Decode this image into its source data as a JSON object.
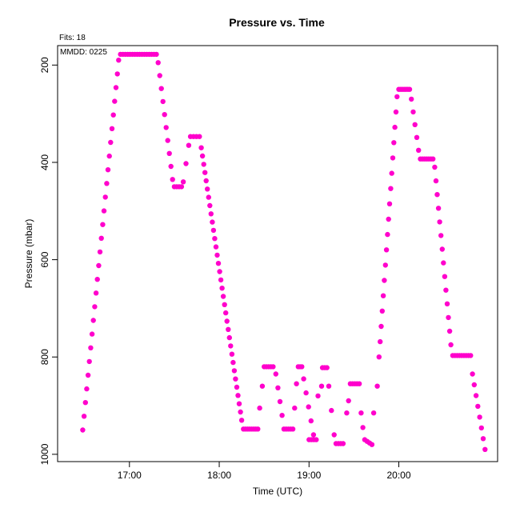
{
  "chart_data": {
    "type": "scatter",
    "title": "Pressure  vs. Time",
    "annotations": {
      "fits": "Fits: 18",
      "mmdd": "MMDD: 0225"
    },
    "xlabel": "Time (UTC)",
    "ylabel": "Pressure (mbar)",
    "xlim": [
      16.2,
      21.1
    ],
    "ylim": [
      1015,
      160
    ],
    "y_inverted": true,
    "x_ticks": [
      {
        "value": 17,
        "label": "17:00"
      },
      {
        "value": 18,
        "label": "18:00"
      },
      {
        "value": 19,
        "label": "19:00"
      },
      {
        "value": 20,
        "label": "20:00"
      }
    ],
    "y_ticks": [
      {
        "value": 200,
        "label": "200"
      },
      {
        "value": 400,
        "label": "400"
      },
      {
        "value": 600,
        "label": "600"
      },
      {
        "value": 800,
        "label": "800"
      },
      {
        "value": 1000,
        "label": "1000"
      }
    ],
    "grid": false,
    "marker_color": "#ff00cc",
    "segments": [
      {
        "x_start": 16.48,
        "x_end": 16.88,
        "y_start": 950,
        "y_end": 190,
        "n": 28
      },
      {
        "x_start": 16.9,
        "x_end": 17.3,
        "y_start": 178,
        "y_end": 178,
        "n": 16
      },
      {
        "x_start": 17.32,
        "x_end": 17.48,
        "y_start": 195,
        "y_end": 435,
        "n": 10
      },
      {
        "x_start": 17.5,
        "x_end": 17.58,
        "y_start": 450,
        "y_end": 450,
        "n": 4
      },
      {
        "x_start": 17.6,
        "x_end": 17.66,
        "y_start": 440,
        "y_end": 365,
        "n": 3
      },
      {
        "x_start": 17.68,
        "x_end": 17.78,
        "y_start": 347,
        "y_end": 347,
        "n": 4
      },
      {
        "x_start": 17.8,
        "x_end": 18.25,
        "y_start": 370,
        "y_end": 930,
        "n": 34
      },
      {
        "x_start": 18.27,
        "x_end": 18.43,
        "y_start": 948,
        "y_end": 948,
        "n": 8
      },
      {
        "x_start": 18.45,
        "x_end": 18.48,
        "y_start": 905,
        "y_end": 860,
        "n": 2
      },
      {
        "x_start": 18.5,
        "x_end": 18.6,
        "y_start": 820,
        "y_end": 820,
        "n": 5
      },
      {
        "x_start": 18.63,
        "x_end": 18.7,
        "y_start": 835,
        "y_end": 920,
        "n": 4
      },
      {
        "x_start": 18.72,
        "x_end": 18.82,
        "y_start": 948,
        "y_end": 948,
        "n": 5
      },
      {
        "x_start": 18.84,
        "x_end": 18.86,
        "y_start": 905,
        "y_end": 855,
        "n": 2
      },
      {
        "x_start": 18.88,
        "x_end": 18.92,
        "y_start": 820,
        "y_end": 820,
        "n": 3
      },
      {
        "x_start": 18.94,
        "x_end": 19.05,
        "y_start": 845,
        "y_end": 960,
        "n": 5
      },
      {
        "x_start": 19.0,
        "x_end": 19.08,
        "y_start": 970,
        "y_end": 970,
        "n": 4
      },
      {
        "x_start": 19.1,
        "x_end": 19.14,
        "y_start": 880,
        "y_end": 860,
        "n": 2
      },
      {
        "x_start": 19.15,
        "x_end": 19.2,
        "y_start": 822,
        "y_end": 822,
        "n": 3
      },
      {
        "x_start": 19.22,
        "x_end": 19.28,
        "y_start": 860,
        "y_end": 960,
        "n": 3
      },
      {
        "x_start": 19.3,
        "x_end": 19.38,
        "y_start": 978,
        "y_end": 978,
        "n": 4
      },
      {
        "x_start": 19.42,
        "x_end": 19.44,
        "y_start": 915,
        "y_end": 890,
        "n": 2
      },
      {
        "x_start": 19.46,
        "x_end": 19.56,
        "y_start": 855,
        "y_end": 855,
        "n": 5
      },
      {
        "x_start": 19.58,
        "x_end": 19.6,
        "y_start": 915,
        "y_end": 945,
        "n": 2
      },
      {
        "x_start": 19.62,
        "x_end": 19.7,
        "y_start": 970,
        "y_end": 980,
        "n": 4
      },
      {
        "x_start": 19.72,
        "x_end": 19.76,
        "y_start": 915,
        "y_end": 860,
        "n": 2
      },
      {
        "x_start": 19.78,
        "x_end": 19.98,
        "y_start": 800,
        "y_end": 265,
        "n": 18
      },
      {
        "x_start": 20.0,
        "x_end": 20.12,
        "y_start": 250,
        "y_end": 250,
        "n": 7
      },
      {
        "x_start": 20.14,
        "x_end": 20.22,
        "y_start": 270,
        "y_end": 375,
        "n": 5
      },
      {
        "x_start": 20.24,
        "x_end": 20.38,
        "y_start": 393,
        "y_end": 393,
        "n": 7
      },
      {
        "x_start": 20.4,
        "x_end": 20.58,
        "y_start": 410,
        "y_end": 775,
        "n": 14
      },
      {
        "x_start": 20.6,
        "x_end": 20.8,
        "y_start": 797,
        "y_end": 797,
        "n": 9
      },
      {
        "x_start": 20.82,
        "x_end": 20.96,
        "y_start": 835,
        "y_end": 990,
        "n": 8
      }
    ]
  }
}
